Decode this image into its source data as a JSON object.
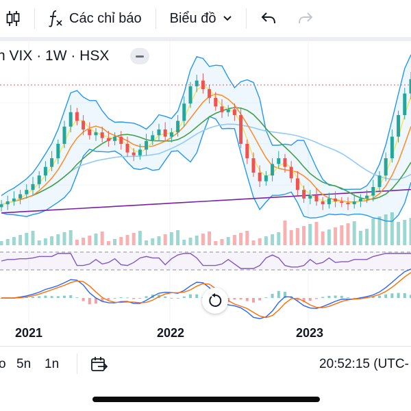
{
  "toolbar": {
    "indicators_label": "Các chỉ báo",
    "chart_type_label": "Biểu đồ"
  },
  "symbol": {
    "title": "n VIX · 1W · HSX"
  },
  "timeline": {
    "labels": [
      "2021",
      "2022",
      "2023"
    ]
  },
  "bottom": {
    "ranges": [
      "o",
      "5n",
      "1n"
    ],
    "clock": "20:52:15 (UTC-"
  },
  "colors": {
    "up": "#26a69a",
    "down": "#ef5350",
    "bollinger": "#2196f3",
    "ma_yellow": "#f5e663",
    "ma_orange": "#ff8f2b",
    "ma_green": "#43a047",
    "ma_lightblue": "#90caf9",
    "ma_purple": "#7b1fa2",
    "rsi": "#7e57c2",
    "macd": "#2962ff",
    "signal": "#ff6d00"
  },
  "chart_data": {
    "type": "candlestick",
    "symbol": "VIX",
    "interval": "1W",
    "exchange": "HSX",
    "x_axis": [
      "2021",
      "2022",
      "2023"
    ],
    "price_series_relative_0_to_100": [
      8,
      10,
      12,
      15,
      18,
      22,
      28,
      34,
      40,
      50,
      62,
      72,
      66,
      60,
      56,
      58,
      54,
      52,
      55,
      50,
      44,
      42,
      46,
      52,
      56,
      60,
      55,
      58,
      66,
      78,
      90,
      94,
      88,
      82,
      76,
      72,
      74,
      70,
      50,
      40,
      30,
      24,
      28,
      36,
      40,
      34,
      26,
      18,
      12,
      14,
      10,
      8,
      12,
      10,
      9,
      8,
      10,
      12,
      14,
      20,
      28,
      40,
      55,
      70,
      85,
      95
    ],
    "indicators": [
      "Bollinger Bands",
      "Moving averages",
      "Volume",
      "RSI",
      "MACD"
    ]
  }
}
